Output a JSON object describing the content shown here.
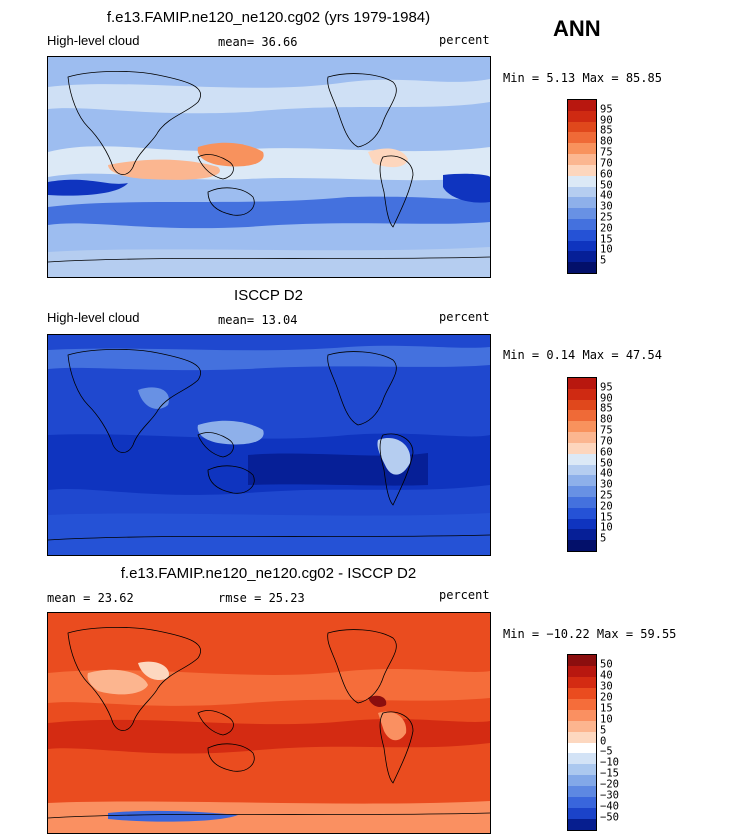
{
  "season": "ANN",
  "panels": [
    {
      "title": "f.e13.FAMIP.ne120_ne120.cg02 (yrs 1979-1984)",
      "left_label": "High-level cloud",
      "center_label": "mean=  36.66",
      "right_label": "percent",
      "stats": "Min =   5.13 Max =  85.85",
      "colorbar_levels": [
        "95",
        "90",
        "85",
        "80",
        "75",
        "70",
        "60",
        "50",
        "40",
        "30",
        "25",
        "20",
        "15",
        "10",
        "5"
      ],
      "colors": [
        "#b8170f",
        "#cf2a12",
        "#e0481c",
        "#ef6a37",
        "#f8925d",
        "#fbb690",
        "#fdd6bd",
        "#dce9f6",
        "#b5cdf0",
        "#8eb0ea",
        "#6891e4",
        "#4471de",
        "#2552d6",
        "#0f34bf",
        "#061f97",
        "#03106a"
      ],
      "background": "#9dbdf0"
    },
    {
      "title": "ISCCP D2",
      "left_label": "High-level cloud",
      "center_label": "mean=  13.04",
      "right_label": "percent",
      "stats": "Min =   0.14 Max =  47.54",
      "colorbar_levels": [
        "95",
        "90",
        "85",
        "80",
        "75",
        "70",
        "60",
        "50",
        "40",
        "30",
        "25",
        "20",
        "15",
        "10",
        "5"
      ],
      "colors": [
        "#b8170f",
        "#cf2a12",
        "#e0481c",
        "#ef6a37",
        "#f8925d",
        "#fbb690",
        "#fdd6bd",
        "#dce9f6",
        "#b5cdf0",
        "#8eb0ea",
        "#6891e4",
        "#4471de",
        "#2552d6",
        "#0f34bf",
        "#061f97",
        "#03106a"
      ],
      "background": "#1f48cf"
    },
    {
      "title": "f.e13.FAMIP.ne120_ne120.cg02 - ISCCP D2",
      "left_label": "mean =  23.62",
      "center_label": "rmse =  25.23",
      "right_label": "percent",
      "stats": "Min = −10.22 Max =  59.55",
      "colorbar_levels": [
        "50",
        "40",
        "30",
        "20",
        "15",
        "10",
        "5",
        "0",
        "−5",
        "−10",
        "−15",
        "−20",
        "−30",
        "−40",
        "−50"
      ],
      "colors": [
        "#8b0e0e",
        "#b8170f",
        "#d42b12",
        "#ea4c1f",
        "#f56d3a",
        "#fa9061",
        "#fcb58f",
        "#fdd8c0",
        "#ffffff",
        "#d3e3f6",
        "#abc8ef",
        "#82a8e8",
        "#5d88e2",
        "#3966dc",
        "#1b43c9",
        "#061e8f"
      ],
      "background": "#ea4c1f"
    }
  ]
}
